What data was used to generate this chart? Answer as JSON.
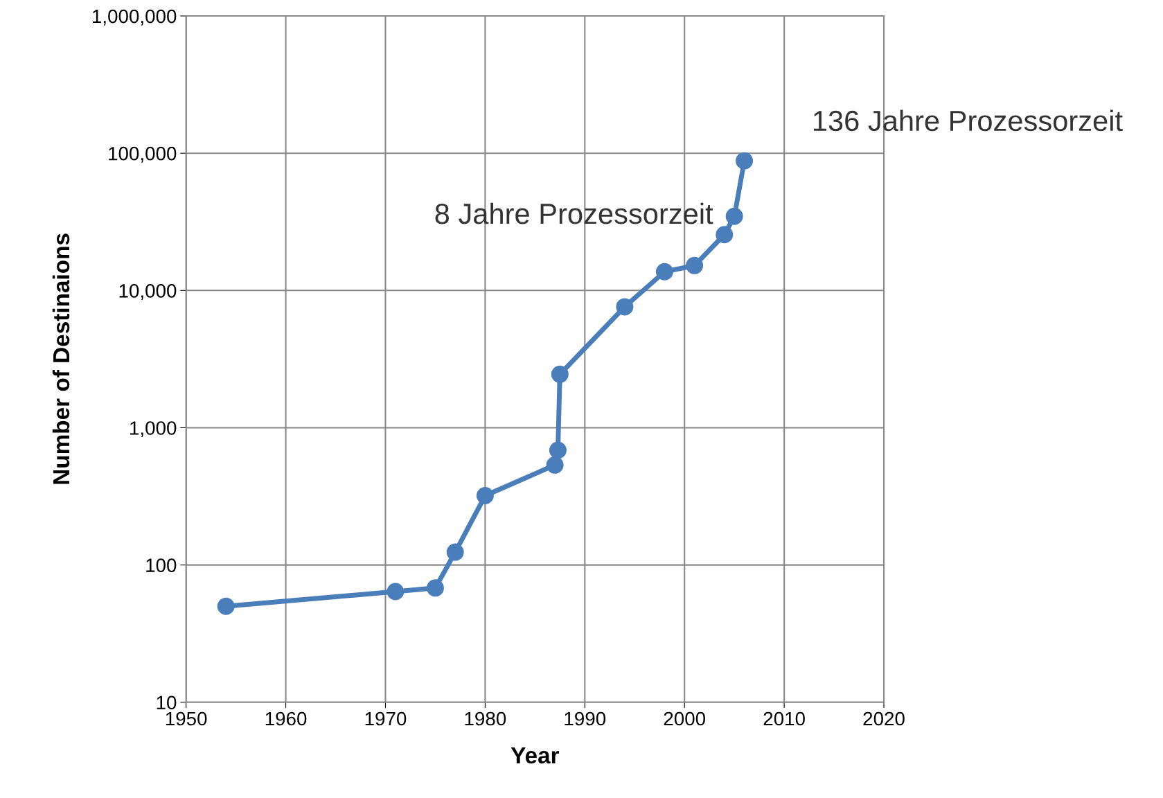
{
  "chart_data": {
    "type": "line",
    "xlabel": "Year",
    "ylabel": "Number of Destinaions",
    "x": [
      1954,
      1971,
      1975,
      1977,
      1980,
      1987,
      1987.3,
      1987.5,
      1994,
      1998,
      2001,
      2004,
      2005,
      2006
    ],
    "series": [
      {
        "color": "#4a7ebb",
        "values": [
          50,
          64,
          68,
          124,
          320,
          535,
          685,
          2450,
          7600,
          13700,
          15200,
          25500,
          34700,
          88000
        ]
      }
    ],
    "xlim": [
      1950,
      2020
    ],
    "xticks": [
      1950,
      1960,
      1970,
      1980,
      1990,
      2000,
      2010,
      2020
    ],
    "log": true,
    "ylim": [
      10,
      1000000
    ],
    "yticks": [
      {
        "value": 10,
        "label": "10"
      },
      {
        "value": 100,
        "label": "100"
      },
      {
        "value": 1000,
        "label": "1,000"
      },
      {
        "value": 10000,
        "label": "10,000"
      },
      {
        "value": 100000,
        "label": "100,000"
      },
      {
        "value": 1000000,
        "label": "1,000,000"
      }
    ],
    "grid": true,
    "marker": "circle",
    "line_style": "solid",
    "legend": false,
    "annotations": [
      {
        "text": "8 Jahre Prozessorzeit",
        "x": 2005,
        "y": 34700
      },
      {
        "text": "136 Jahre Prozessorzeit",
        "x": 2006,
        "y": 88000
      }
    ]
  }
}
